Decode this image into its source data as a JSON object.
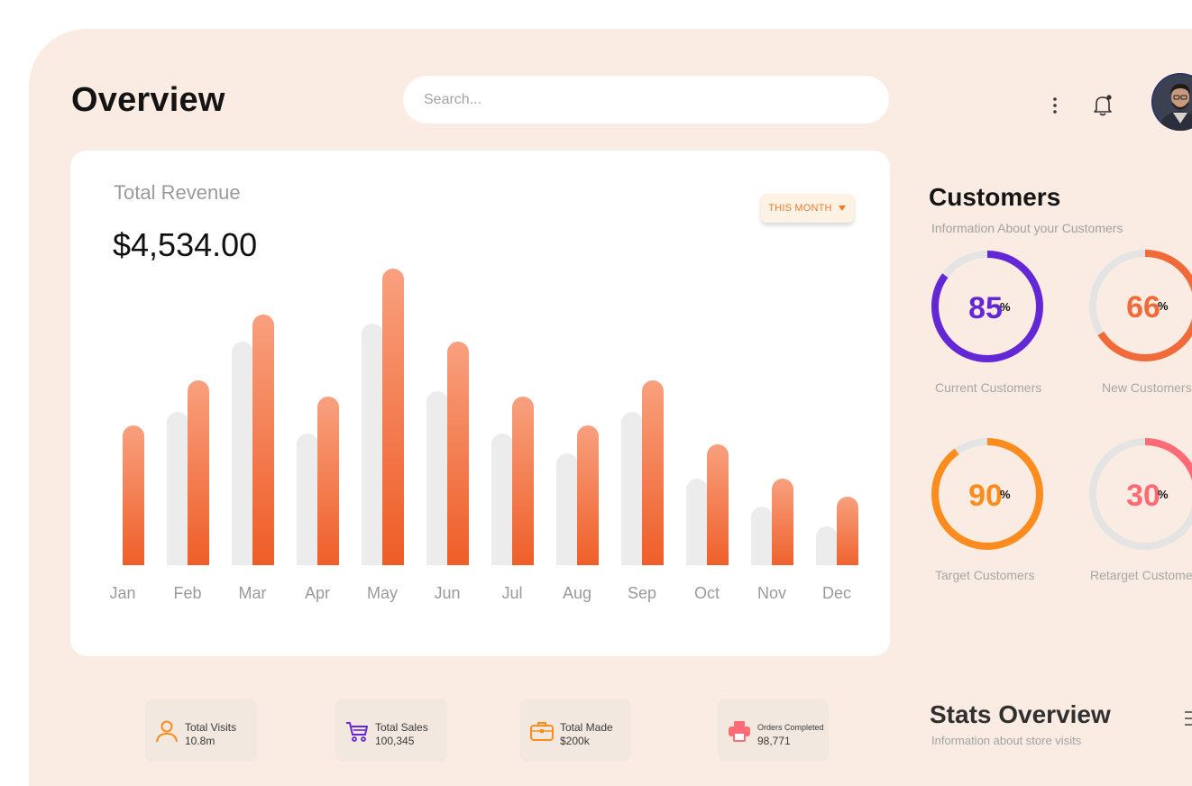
{
  "header": {
    "title": "Overview",
    "search_placeholder": "Search...",
    "search_value": ""
  },
  "icons": {
    "more": "more-vertical-icon",
    "bell": "notification-bell-icon",
    "avatar": "user-avatar"
  },
  "revenue": {
    "label": "Total Revenue",
    "value": "$4,534.00",
    "period": "THIS MONTH"
  },
  "chart_data": {
    "type": "bar",
    "title": "Total Revenue",
    "categories": [
      "Jan",
      "Feb",
      "Mar",
      "Apr",
      "May",
      "Jun",
      "Jul",
      "Aug",
      "Sep",
      "Oct",
      "Nov",
      "Dec"
    ],
    "series": [
      {
        "color": "#ececec",
        "values": [
          null,
          170,
          248,
          146,
          268,
          193,
          146,
          124,
          170,
          96,
          65,
          43
        ]
      },
      {
        "color": "#ee5a24",
        "gradient_top": "#f8a07e",
        "values": [
          155,
          205,
          278,
          187,
          329,
          248,
          187,
          155,
          205,
          134,
          96,
          76
        ]
      }
    ],
    "ylim": [
      0,
      330
    ],
    "grid": false,
    "legend": "none"
  },
  "customers": {
    "title": "Customers",
    "subtitle": "Information About your Customers",
    "rings": [
      {
        "value": "85",
        "unit": "%",
        "label": "Current Customers",
        "color": "#6327d5",
        "fraction": 0.85
      },
      {
        "value": "66",
        "unit": "%",
        "label": "New Customers",
        "color": "#f06a3a",
        "fraction": 0.66
      },
      {
        "value": "90",
        "unit": "%",
        "label": "Target Customers",
        "color": "#fb8c1d",
        "fraction": 0.9
      },
      {
        "value": "30",
        "unit": "%",
        "label": "Retarget Customers",
        "color": "#ff6b74",
        "fraction": 0.3
      }
    ]
  },
  "stats": [
    {
      "label": "Total Visits",
      "value": "10.8m",
      "icon": "user-icon",
      "color": "#fb8c1d"
    },
    {
      "label": "Total Sales",
      "value": "100,345",
      "icon": "cart-icon",
      "color": "#6327d5"
    },
    {
      "label": "Total Made",
      "value": "$200k",
      "icon": "briefcase-icon",
      "color": "#fb8c1d"
    },
    {
      "label": "Orders Completed",
      "value": "98,771",
      "icon": "printer-icon",
      "color": "#ff6b74"
    }
  ],
  "stats_overview": {
    "title": "Stats Overview",
    "subtitle": "Information about store visits"
  }
}
